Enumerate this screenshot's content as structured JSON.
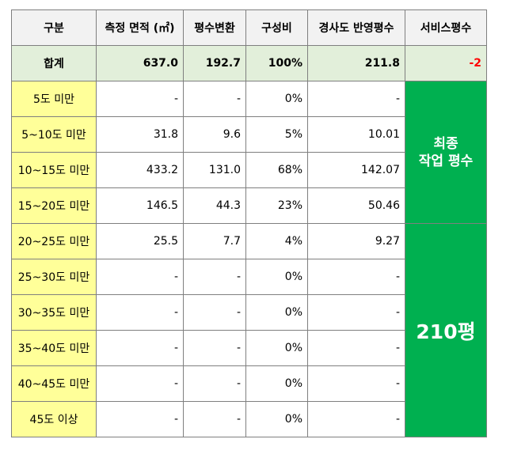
{
  "headers": [
    "구분",
    "측정 면적 (㎡)",
    "평수변환",
    "구성비",
    "경사도 반영평수",
    "서비스평수"
  ],
  "total": {
    "label": "합계",
    "area": "637.0",
    "pyeong": "192.7",
    "ratio": "100%",
    "adjusted": "211.8",
    "service": "-2"
  },
  "rows": [
    {
      "label": "5도 미만",
      "area": "-",
      "pyeong": "-",
      "ratio": "0%",
      "adjusted": "-"
    },
    {
      "label": "5~10도 미만",
      "area": "31.8",
      "pyeong": "9.6",
      "ratio": "5%",
      "adjusted": "10.01"
    },
    {
      "label": "10~15도 미만",
      "area": "433.2",
      "pyeong": "131.0",
      "ratio": "68%",
      "adjusted": "142.07"
    },
    {
      "label": "15~20도 미만",
      "area": "146.5",
      "pyeong": "44.3",
      "ratio": "23%",
      "adjusted": "50.46"
    },
    {
      "label": "20~25도 미만",
      "area": "25.5",
      "pyeong": "7.7",
      "ratio": "4%",
      "adjusted": "9.27"
    },
    {
      "label": "25~30도 미만",
      "area": "-",
      "pyeong": "-",
      "ratio": "0%",
      "adjusted": "-"
    },
    {
      "label": "30~35도 미만",
      "area": "-",
      "pyeong": "-",
      "ratio": "0%",
      "adjusted": "-"
    },
    {
      "label": "35~40도 미만",
      "area": "-",
      "pyeong": "-",
      "ratio": "0%",
      "adjusted": "-"
    },
    {
      "label": "40~45도 미만",
      "area": "-",
      "pyeong": "-",
      "ratio": "0%",
      "adjusted": "-"
    },
    {
      "label": "45도 이상",
      "area": "-",
      "pyeong": "-",
      "ratio": "0%",
      "adjusted": "-"
    }
  ],
  "merged": {
    "final_line1": "최종",
    "final_line2": "작업 평수",
    "value": "210평"
  },
  "colors": {
    "header_bg": "#f2f2f2",
    "total_bg": "#e2efda",
    "label_bg": "#ffff99",
    "green": "#00b050",
    "negative": "#ff0000"
  }
}
